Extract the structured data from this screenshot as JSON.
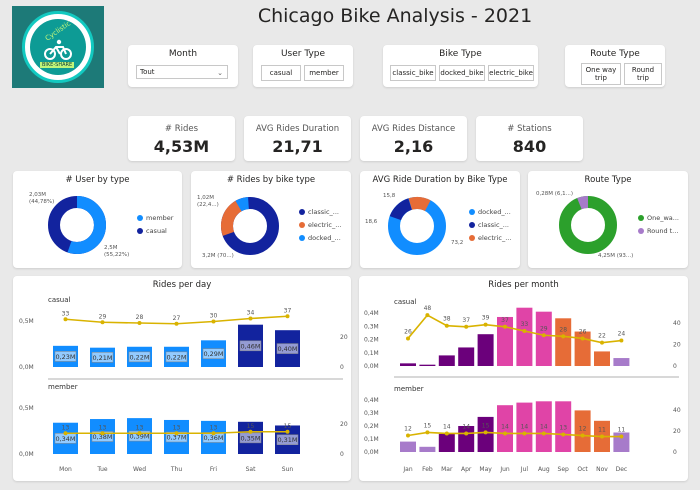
{
  "header": {
    "title": "Chicago Bike Analysis - 2021"
  },
  "logo": {
    "line1": "Cyclistic",
    "line2": "BIKE-SHARE"
  },
  "slicers": {
    "month": {
      "title": "Month",
      "value": "Tout"
    },
    "user_type": {
      "title": "User Type",
      "options": [
        "casual",
        "member"
      ]
    },
    "bike_type": {
      "title": "Bike Type",
      "options": [
        "classic_bike",
        "docked_bike",
        "electric_bike"
      ]
    },
    "route_type": {
      "title": "Route Type",
      "options": [
        "One way trip",
        "Round trip"
      ]
    }
  },
  "kpis": [
    {
      "label": "# Rides",
      "value": "4,53M"
    },
    {
      "label": "AVG Rides Duration",
      "value": "21,71"
    },
    {
      "label": "AVG Rides Distance",
      "value": "2,16"
    },
    {
      "label": "# Stations",
      "value": "840"
    }
  ],
  "donuts": {
    "user_by_type": {
      "title": "# User by type",
      "label_a": "2,03M",
      "label_a2": "(44,78%)",
      "label_b": "2,5M",
      "label_b2": "(55,22%)",
      "legend": [
        "member",
        "casual"
      ]
    },
    "rides_by_bike": {
      "title": "# Rides by bike type",
      "label_a": "1,02M",
      "label_a2": "(22,4...)",
      "label_b": "3,2M (70...)",
      "legend": [
        "classic_...",
        "electric_...",
        "docked_..."
      ]
    },
    "avg_duration_bike": {
      "title": "AVG Ride Duration by Bike Type",
      "label_a": "15,8",
      "label_b": "18,6",
      "label_c": "73,2",
      "legend": [
        "docked_...",
        "classic_...",
        "electric_..."
      ]
    },
    "route_type": {
      "title": "Route Type",
      "label_a": "0,28M (6,1...)",
      "label_b": "4,25M (93...)",
      "legend": [
        "One_wa...",
        "Round t..."
      ]
    }
  },
  "colors": {
    "blue": "#118dff",
    "navy": "#12239e",
    "orange": "#e66c37",
    "green": "#2ca02c",
    "purple": "#a77bca",
    "gold": "#d9b300",
    "darkpurple": "#6b007b",
    "pink": "#e044a7"
  },
  "chart_data": [
    {
      "type": "bar",
      "title": "Rides per day",
      "categories": [
        "Mon",
        "Tue",
        "Wed",
        "Thu",
        "Fri",
        "Sat",
        "Sun"
      ],
      "y_axis": {
        "top_label": "0,5M",
        "zero_label": "0,0M"
      },
      "y2_axis": {
        "top_label": "20",
        "zero_label": "0"
      },
      "series": [
        {
          "name": "casual",
          "values": [
            0.23,
            0.21,
            0.22,
            0.22,
            0.29,
            0.46,
            0.4
          ],
          "labels": [
            "0,23M",
            "0,21M",
            "0,22M",
            "0,22M",
            "0,29M",
            "0,46M",
            "0,40M"
          ],
          "line": [
            33,
            29,
            28,
            27,
            30,
            34,
            37
          ]
        },
        {
          "name": "member",
          "values": [
            0.34,
            0.38,
            0.39,
            0.37,
            0.36,
            0.35,
            0.31
          ],
          "labels": [
            "0,34M",
            "0,38M",
            "0,39M",
            "0,37M",
            "0,36M",
            "0,35M",
            "0,31M"
          ],
          "line": [
            13,
            13,
            13,
            13,
            13,
            15,
            15
          ]
        }
      ]
    },
    {
      "type": "bar",
      "title": "Rides per month",
      "categories": [
        "Jan",
        "Feb",
        "Mar",
        "Apr",
        "May",
        "Jun",
        "Jul",
        "Aug",
        "Sep",
        "Oct",
        "Nov",
        "Dec"
      ],
      "y_axis": {
        "ticks": [
          "0,4M",
          "0,3M",
          "0,2M",
          "0,1M",
          "0,0M"
        ]
      },
      "y2_axis": {
        "ticks": [
          "40",
          "20",
          "0"
        ]
      },
      "series": [
        {
          "name": "casual",
          "values": [
            0.02,
            0.01,
            0.08,
            0.14,
            0.24,
            0.37,
            0.44,
            0.41,
            0.36,
            0.26,
            0.11,
            0.06
          ],
          "line": [
            26,
            48,
            38,
            37,
            39,
            37,
            33,
            29,
            28,
            26,
            22,
            24
          ]
        },
        {
          "name": "member",
          "values": [
            0.08,
            0.04,
            0.14,
            0.2,
            0.27,
            0.36,
            0.38,
            0.39,
            0.39,
            0.32,
            0.24,
            0.15
          ],
          "line": [
            12,
            15,
            14,
            14,
            15,
            14,
            14,
            14,
            13,
            12,
            11,
            11
          ]
        }
      ]
    }
  ]
}
